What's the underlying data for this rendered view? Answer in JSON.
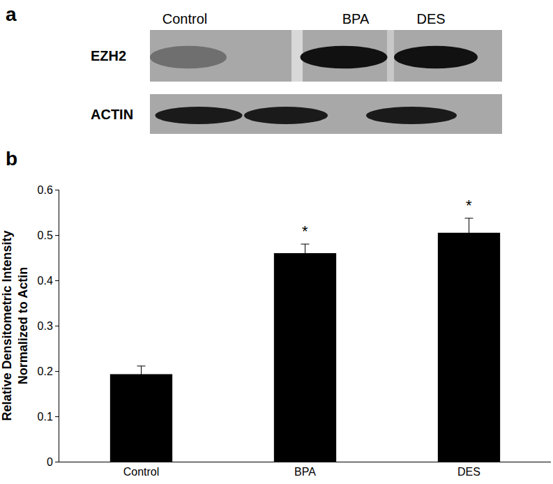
{
  "panel_a": {
    "label": "a",
    "lanes": [
      "Control",
      "BPA",
      "DES"
    ],
    "rows": [
      "EZH2",
      "ACTIN"
    ]
  },
  "chart_data": {
    "panel_label": "b",
    "type": "bar",
    "categories": [
      "Control",
      "BPA",
      "DES"
    ],
    "values": [
      0.193,
      0.46,
      0.505
    ],
    "errors": [
      0.018,
      0.02,
      0.032
    ],
    "color": "#000000",
    "ylabel": [
      "Relative Densitometric Intensity",
      "Normalized to Actin"
    ],
    "ylim": [
      0,
      0.6
    ],
    "yticks": [
      0,
      0.1,
      0.2,
      0.3,
      0.4,
      0.5,
      0.6
    ],
    "grid": false,
    "annotations": [
      {
        "category": "BPA",
        "text": "*"
      },
      {
        "category": "DES",
        "text": "*"
      }
    ]
  }
}
